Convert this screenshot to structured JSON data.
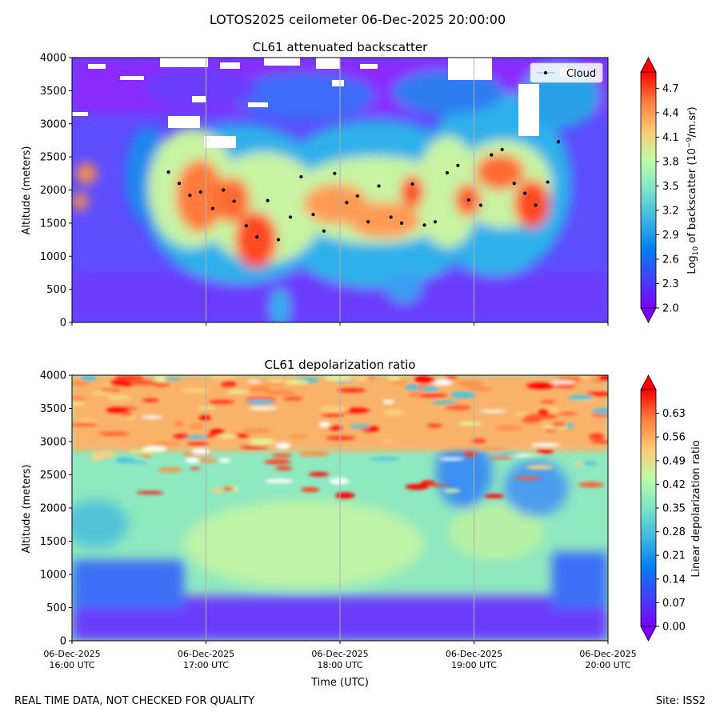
{
  "figure": {
    "title": "LOTOS2025 ceilometer 06-Dec-2025 20:00:00",
    "footer_left": "REAL TIME DATA, NOT CHECKED FOR QUALITY",
    "footer_right": "Site: ISS2"
  },
  "chart_data": [
    {
      "type": "heatmap",
      "title": "CL61 attenuated backscatter",
      "xlabel": "",
      "ylabel": "Altitude (meters)",
      "x_range_hours_utc": [
        16.0,
        20.0
      ],
      "xticks": [
        {
          "hour": 16,
          "line1": "06-Dec-2025",
          "line2": "16:00 UTC"
        },
        {
          "hour": 17,
          "line1": "06-Dec-2025",
          "line2": "17:00 UTC"
        },
        {
          "hour": 18,
          "line1": "06-Dec-2025",
          "line2": "18:00 UTC"
        },
        {
          "hour": 19,
          "line1": "06-Dec-2025",
          "line2": "19:00 UTC"
        },
        {
          "hour": 20,
          "line1": "06-Dec-2025",
          "line2": "20:00 UTC"
        }
      ],
      "xtick_labels_shown": false,
      "yticks": [
        0,
        500,
        1000,
        1500,
        2000,
        2500,
        3000,
        3500,
        4000
      ],
      "ylim": [
        0,
        4000
      ],
      "vertical_grid_hours": [
        17,
        18,
        19
      ],
      "colorbar": {
        "label_prefix": "Log",
        "label_sub": "10",
        "label_mid": " of backscatter (10",
        "label_sup": "−9",
        "label_suffix": "/m.sr)",
        "ticks": [
          "2.0",
          "2.3",
          "2.6",
          "2.9",
          "3.2",
          "3.5",
          "3.8",
          "4.1",
          "4.4",
          "4.7"
        ],
        "range": [
          2.0,
          4.9
        ],
        "colormap": "rainbow",
        "extend": "both"
      },
      "legend": {
        "location": "top-right",
        "entries": [
          "Cloud"
        ]
      },
      "cloud_base_points": {
        "name": "Cloud",
        "hours": [
          16.72,
          16.8,
          16.88,
          16.96,
          17.05,
          17.13,
          17.21,
          17.3,
          17.38,
          17.46,
          17.54,
          17.63,
          17.71,
          17.8,
          17.88,
          17.96,
          18.05,
          18.13,
          18.21,
          18.29,
          18.38,
          18.46,
          18.54,
          18.63,
          18.71,
          18.8,
          18.88,
          18.96,
          19.05,
          19.13,
          19.21,
          19.3,
          19.38,
          19.46,
          19.55,
          19.63
        ],
        "altitude_m": [
          2270,
          2100,
          1920,
          1970,
          1720,
          2000,
          1830,
          1460,
          1290,
          1840,
          1250,
          1590,
          2200,
          1630,
          1380,
          2250,
          1810,
          1910,
          1520,
          2060,
          1590,
          1500,
          2090,
          1470,
          1520,
          2260,
          2370,
          1850,
          1770,
          2530,
          2610,
          2100,
          1950,
          1770,
          2120,
          2730
        ]
      },
      "features": {
        "main_layer_altitude_m": [
          1000,
          2600
        ],
        "main_layer_hours": [
          16.65,
          19.65
        ],
        "peak_log10_backscatter": 4.8,
        "upper_noisy_region_altitude_m": [
          2900,
          4000
        ],
        "near_surface_log10": 2.25,
        "isolated_patch_hour": 16.1,
        "isolated_patch_altitudes_m": [
          1850,
          2250
        ]
      }
    },
    {
      "type": "heatmap",
      "title": "CL61 depolarization ratio",
      "xlabel": "Time (UTC)",
      "ylabel": "Altitude (meters)",
      "x_range_hours_utc": [
        16.0,
        20.0
      ],
      "xticks": [
        {
          "hour": 16,
          "line1": "06-Dec-2025",
          "line2": "16:00 UTC"
        },
        {
          "hour": 17,
          "line1": "06-Dec-2025",
          "line2": "17:00 UTC"
        },
        {
          "hour": 18,
          "line1": "06-Dec-2025",
          "line2": "18:00 UTC"
        },
        {
          "hour": 19,
          "line1": "06-Dec-2025",
          "line2": "19:00 UTC"
        },
        {
          "hour": 20,
          "line1": "06-Dec-2025",
          "line2": "20:00 UTC"
        }
      ],
      "xtick_labels_shown": true,
      "yticks": [
        0,
        500,
        1000,
        1500,
        2000,
        2500,
        3000,
        3500,
        4000
      ],
      "ylim": [
        0,
        4000
      ],
      "vertical_grid_hours": [
        17,
        18,
        19
      ],
      "colorbar": {
        "label": "Linear depolarization ratio",
        "ticks": [
          "0.00",
          "0.07",
          "0.14",
          "0.21",
          "0.28",
          "0.35",
          "0.42",
          "0.49",
          "0.56",
          "0.63"
        ],
        "range": [
          0.0,
          0.7
        ],
        "colormap": "rainbow",
        "extend": "both"
      },
      "features": {
        "layer_ratio": 0.4,
        "layer_altitude_m": [
          600,
          2300
        ],
        "upper_noisy_region_altitude_m": [
          2800,
          4000
        ],
        "upper_region_ratio_range": [
          0.3,
          0.7
        ],
        "near_surface_ratio": 0.02
      }
    }
  ]
}
